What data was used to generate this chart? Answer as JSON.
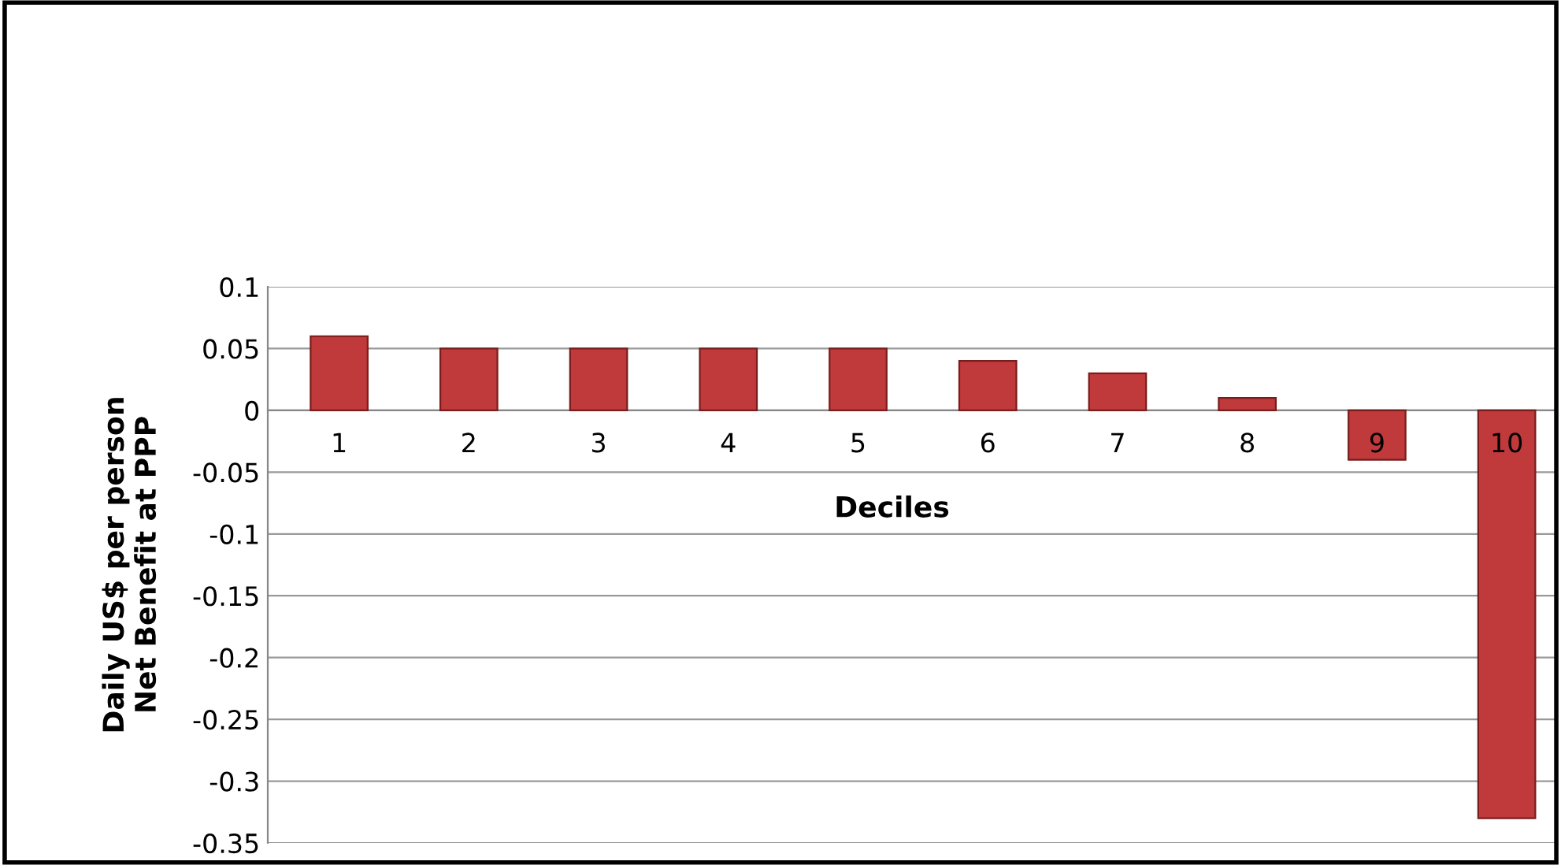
{
  "chart_data": {
    "type": "bar",
    "xlabel": "Deciles",
    "ylabel": "Daily US$ per person\nNet Benefit at PPP",
    "categories": [
      "1",
      "2",
      "3",
      "4",
      "5",
      "6",
      "7",
      "8",
      "9",
      "10"
    ],
    "values": [
      0.06,
      0.05,
      0.05,
      0.05,
      0.05,
      0.04,
      0.03,
      0.01,
      -0.04,
      -0.33
    ],
    "color": "#c0393b",
    "ylim": [
      -0.35,
      0.1
    ],
    "yticks": [
      {
        "value": 0.1,
        "label": "0.1"
      },
      {
        "value": 0.05,
        "label": "0.05"
      },
      {
        "value": 0,
        "label": "0"
      },
      {
        "value": -0.05,
        "label": "-0.05"
      },
      {
        "value": -0.1,
        "label": "-0.1"
      },
      {
        "value": -0.15,
        "label": "-0.15"
      },
      {
        "value": -0.2,
        "label": "-0.2"
      },
      {
        "value": -0.25,
        "label": "-0.25"
      },
      {
        "value": -0.3,
        "label": "-0.3"
      },
      {
        "value": -0.35,
        "label": "-0.35"
      }
    ],
    "grid": "y"
  }
}
